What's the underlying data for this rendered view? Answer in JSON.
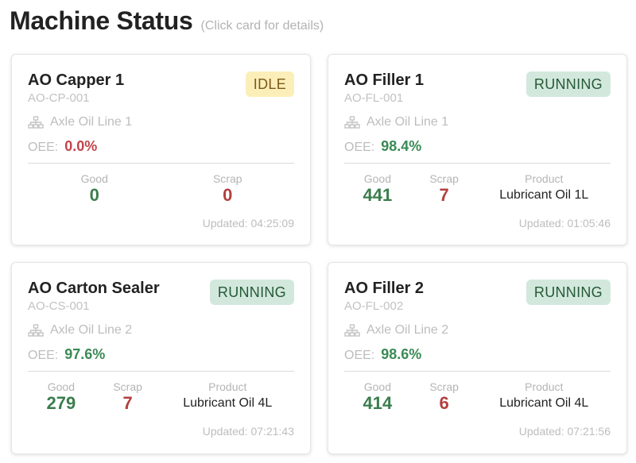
{
  "page": {
    "title": "Machine Status",
    "subtitle": "(Click card for details)"
  },
  "colors": {
    "good": "#3a7d4d",
    "scrap": "#b2403f",
    "idle_badge_bg": "#fbeeb8",
    "running_badge_bg": "#d3e8dc"
  },
  "cards": [
    {
      "name": "AO Capper 1",
      "code": "AO-CP-001",
      "status": "IDLE",
      "line_icon": "sitemap-icon",
      "line": "Axle Oil Line 1",
      "oee_label": "OEE:",
      "oee": "0.0%",
      "good_label": "Good",
      "good": "0",
      "scrap_label": "Scrap",
      "scrap": "0",
      "updated": "Updated: 04:25:09"
    },
    {
      "name": "AO Filler 1",
      "code": "AO-FL-001",
      "status": "RUNNING",
      "line_icon": "sitemap-icon",
      "line": "Axle Oil Line 1",
      "oee_label": "OEE:",
      "oee": "98.4%",
      "good_label": "Good",
      "good": "441",
      "scrap_label": "Scrap",
      "scrap": "7",
      "product_label": "Product",
      "product": "Lubricant Oil 1L",
      "updated": "Updated: 01:05:46"
    },
    {
      "name": "AO Carton Sealer",
      "code": "AO-CS-001",
      "status": "RUNNING",
      "line_icon": "sitemap-icon",
      "line": "Axle Oil Line 2",
      "oee_label": "OEE:",
      "oee": "97.6%",
      "good_label": "Good",
      "good": "279",
      "scrap_label": "Scrap",
      "scrap": "7",
      "product_label": "Product",
      "product": "Lubricant Oil 4L",
      "updated": "Updated: 07:21:43"
    },
    {
      "name": "AO Filler 2",
      "code": "AO-FL-002",
      "status": "RUNNING",
      "line_icon": "sitemap-icon",
      "line": "Axle Oil Line 2",
      "oee_label": "OEE:",
      "oee": "98.6%",
      "good_label": "Good",
      "good": "414",
      "scrap_label": "Scrap",
      "scrap": "6",
      "product_label": "Product",
      "product": "Lubricant Oil 4L",
      "updated": "Updated: 07:21:56"
    }
  ]
}
